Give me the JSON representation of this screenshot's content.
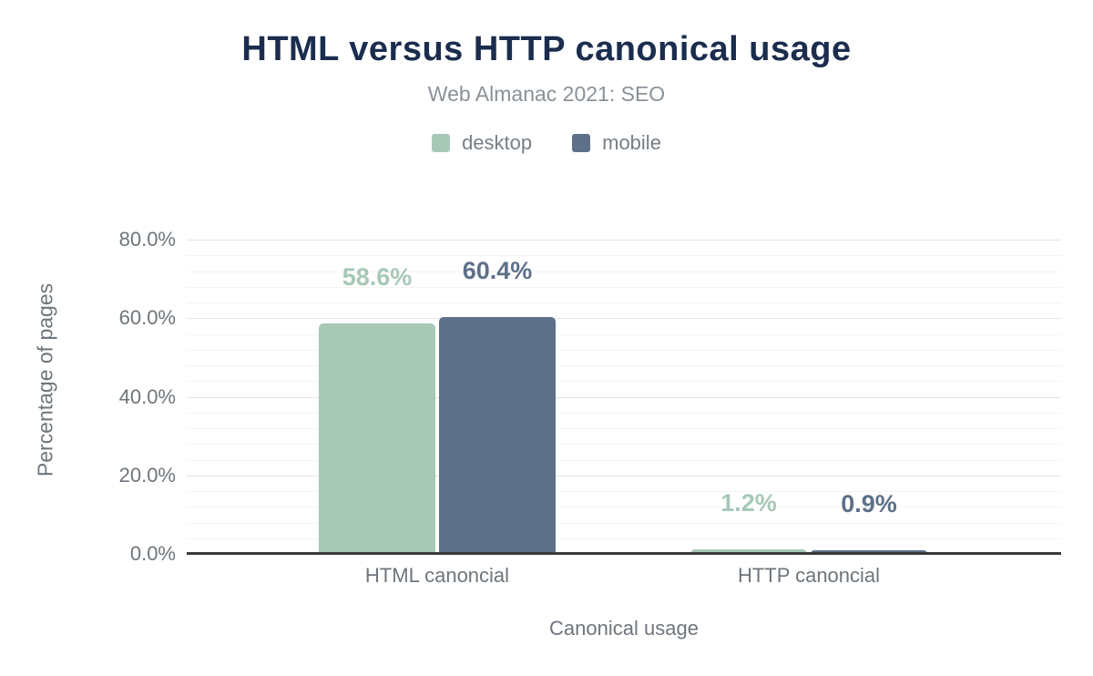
{
  "chart_data": {
    "type": "bar",
    "title": "HTML versus HTTP canonical usage",
    "subtitle": "Web Almanac 2021: SEO",
    "xlabel": "Canonical usage",
    "ylabel": "Percentage of pages",
    "categories": [
      "HTML canoncial",
      "HTTP canoncial"
    ],
    "series": [
      {
        "name": "desktop",
        "color": "#a7c8b7",
        "values": [
          58.6,
          1.2
        ],
        "value_labels": [
          "58.6%",
          "1.2%"
        ]
      },
      {
        "name": "mobile",
        "color": "#5e7089",
        "values": [
          60.4,
          0.9
        ],
        "value_labels": [
          "60.4%",
          "0.9%"
        ]
      }
    ],
    "ylim": [
      0,
      80
    ],
    "yticks": [
      {
        "value": 0,
        "label": "0.0%"
      },
      {
        "value": 20,
        "label": "20.0%"
      },
      {
        "value": 40,
        "label": "40.0%"
      },
      {
        "value": 60,
        "label": "60.0%"
      },
      {
        "value": 80,
        "label": "80.0%"
      }
    ],
    "grid": {
      "visible": true,
      "minor_step": 4,
      "major_step": 20
    },
    "legend_position": "top"
  },
  "colors": {
    "background": "#ffffff",
    "title": "#1b2d4e",
    "subtitle": "#8a9198",
    "axis_text": "#6e757c",
    "legend_text": "#777e87",
    "grid_minor": "#f4f4f4",
    "grid_major": "#e4e4e4",
    "axis_line": "#393a3c"
  }
}
